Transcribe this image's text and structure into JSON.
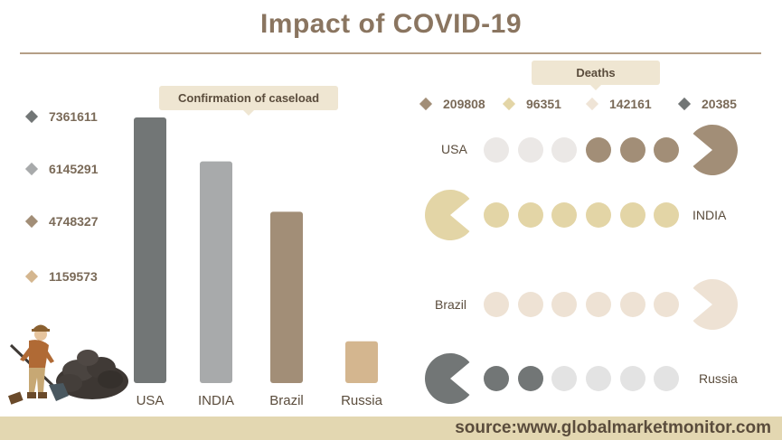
{
  "title": "Impact of COVID-19",
  "cases_label": "Confirmation of caseload",
  "deaths_label": "Deaths",
  "source": "source:www.globalmarketmonitor.com",
  "chart_data": [
    {
      "type": "bar",
      "title": "Confirmation of caseload",
      "categories": [
        "USA",
        "INDIA",
        "Brazil",
        "Russia"
      ],
      "values": [
        7361611,
        6145291,
        4748327,
        1159573
      ],
      "colors": [
        "#727676",
        "#a8aaab",
        "#a28e77",
        "#d4b68f"
      ],
      "legend_labels": [
        "7361611",
        "6145291",
        "4748327",
        "1159573"
      ]
    },
    {
      "type": "pictogram",
      "title": "Deaths",
      "categories": [
        "USA",
        "INDIA",
        "Brazil",
        "Russia"
      ],
      "values": [
        209808,
        96351,
        142161,
        20385
      ],
      "colors": [
        "#a28e77",
        "#e3d5a6",
        "#eee2d4",
        "#727676"
      ],
      "legend_labels": [
        "209808",
        "96351",
        "142161",
        "20385"
      ],
      "rows": [
        {
          "country": "USA",
          "side": "right",
          "dots": [
            "light",
            "light",
            "light",
            "filled",
            "filled",
            "filled"
          ]
        },
        {
          "country": "INDIA",
          "side": "left",
          "dots": [
            "filled",
            "filled",
            "filled",
            "filled",
            "filled",
            "filled"
          ]
        },
        {
          "country": "Brazil",
          "side": "right",
          "dots": [
            "filled",
            "filled",
            "filled",
            "filled",
            "filled",
            "filled"
          ]
        },
        {
          "country": "Russia",
          "side": "left",
          "dots": [
            "filled",
            "filled",
            "light",
            "light",
            "light",
            "light"
          ]
        }
      ]
    }
  ]
}
